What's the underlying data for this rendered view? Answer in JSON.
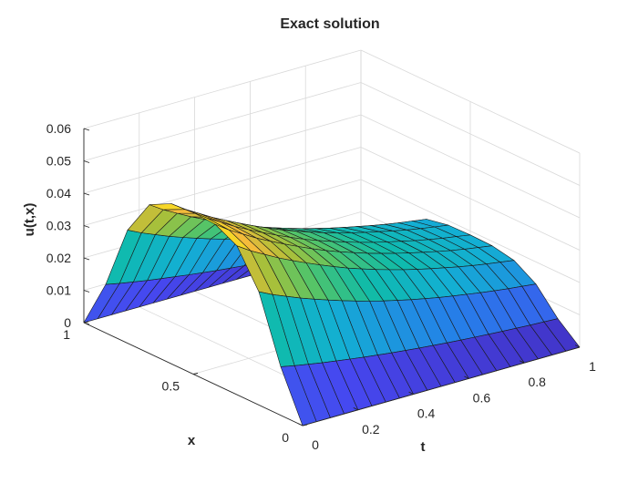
{
  "chart_data": {
    "type": "surface",
    "title": "Exact solution",
    "xlabel": "t",
    "ylabel": "x",
    "zlabel": "u(t,x)",
    "xlim": [
      0,
      1
    ],
    "ylim": [
      0,
      1
    ],
    "zlim": [
      0,
      0.06
    ],
    "x_ticks": [
      "0",
      "0.2",
      "0.4",
      "0.6",
      "0.8",
      "1"
    ],
    "y_ticks": [
      "0",
      "0.5",
      "1"
    ],
    "z_ticks": [
      "0",
      "0.01",
      "0.02",
      "0.03",
      "0.04",
      "0.05",
      "0.06"
    ],
    "grid": true,
    "colormap": "parula",
    "mesh_t": [
      0,
      0.05,
      0.1,
      0.15,
      0.2,
      0.25,
      0.3,
      0.35,
      0.4,
      0.45,
      0.5,
      0.55,
      0.6,
      0.65,
      0.7,
      0.75,
      0.8,
      0.85,
      0.9,
      0.95,
      1.0
    ],
    "mesh_x": [
      0,
      0.1,
      0.2,
      0.3,
      0.4,
      0.5,
      0.6,
      0.7,
      0.8,
      0.9,
      1.0
    ],
    "peak_u_at_x_half": [
      0.05,
      0.047,
      0.0445,
      0.042,
      0.0398,
      0.0377,
      0.0357,
      0.0338,
      0.032,
      0.0304,
      0.0289,
      0.0275,
      0.0262,
      0.025,
      0.0239,
      0.0229,
      0.0219,
      0.021,
      0.0202,
      0.0195,
      0.0188
    ],
    "x_profile_shape": [
      0,
      0.3,
      0.7,
      0.92,
      0.99,
      1.0,
      0.99,
      0.92,
      0.7,
      0.3,
      0
    ]
  }
}
